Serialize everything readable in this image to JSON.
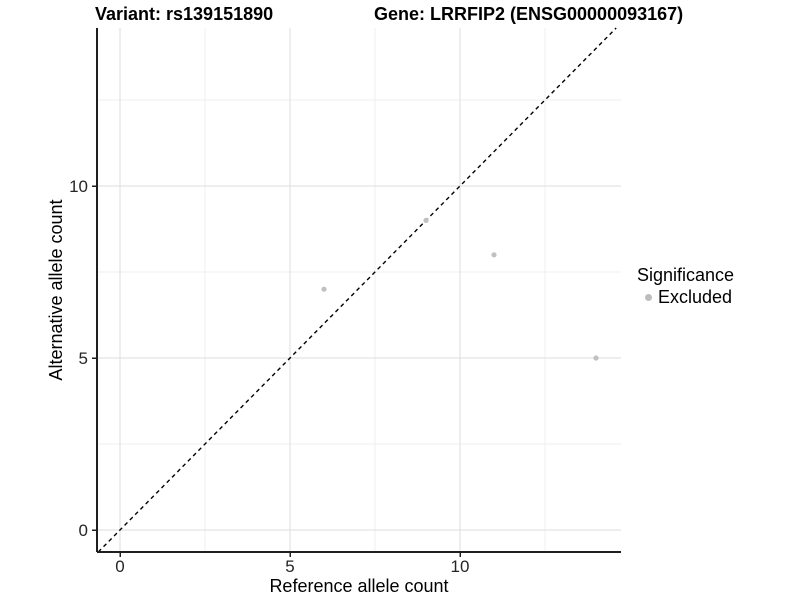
{
  "header": {
    "variant_title": "Variant: rs139151890",
    "gene_title": "Gene: LRRFIP2 (ENSG00000093167)"
  },
  "axes": {
    "x_label": "Reference allele count",
    "y_label": "Alternative allele count"
  },
  "legend": {
    "title": "Significance",
    "items": [
      {
        "label": "Excluded",
        "color": "#bdbdbd"
      }
    ]
  },
  "colors": {
    "background": "#ffffff",
    "point": "#c1c1c1",
    "grid_major": "#dedede",
    "grid_minor": "#efefef",
    "axis_line": "#1f1f1f",
    "reference_line": "#000000"
  },
  "chart_data": {
    "type": "scatter",
    "title_left": "Variant: rs139151890",
    "title_right": "Gene: LRRFIP2 (ENSG00000093167)",
    "xlabel": "Reference allele count",
    "ylabel": "Alternative allele count",
    "series": [
      {
        "name": "Excluded",
        "color": "#c1c1c1",
        "points": [
          [
            6,
            7
          ],
          [
            9,
            9
          ],
          [
            11,
            8
          ],
          [
            14,
            5
          ]
        ]
      }
    ],
    "reference_line": {
      "kind": "identity",
      "equation": "y = x",
      "style": "dashed",
      "color": "#000000"
    },
    "xlim": [
      0,
      14
    ],
    "ylim": [
      0,
      14
    ],
    "x_major_ticks": [
      0,
      5,
      10
    ],
    "y_major_ticks": [
      0,
      5,
      10
    ],
    "x_minor_ticks": [
      2.5,
      7.5,
      12.5
    ],
    "y_minor_ticks": [
      2.5,
      7.5,
      12.5
    ],
    "grid": true,
    "legend_position": "right",
    "legend_title": "Significance"
  }
}
